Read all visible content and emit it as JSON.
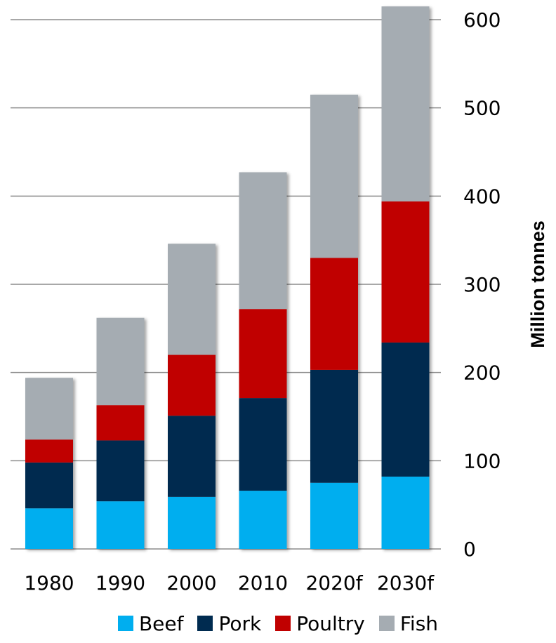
{
  "chart_data": {
    "type": "bar",
    "stacked": true,
    "categories": [
      "1980",
      "1990",
      "2000",
      "2010",
      "2020f",
      "2030f"
    ],
    "series": [
      {
        "name": "Beef",
        "color": "#00aeef",
        "values": [
          46,
          54,
          59,
          66,
          75,
          82
        ]
      },
      {
        "name": "Pork",
        "color": "#002b50",
        "values": [
          52,
          69,
          92,
          105,
          128,
          152
        ]
      },
      {
        "name": "Poultry",
        "color": "#c00000",
        "values": [
          26,
          40,
          69,
          101,
          127,
          160
        ]
      },
      {
        "name": "Fish",
        "color": "#a5acb2",
        "values": [
          70,
          99,
          126,
          155,
          185,
          221
        ]
      }
    ],
    "title": "",
    "xlabel": "",
    "ylabel": "Million tonnes",
    "ylim": [
      0,
      600
    ],
    "yticks": [
      "0",
      "100",
      "200",
      "300",
      "400",
      "500",
      "600"
    ],
    "y_axis_position": "right",
    "grid": true,
    "legend_position": "bottom"
  }
}
